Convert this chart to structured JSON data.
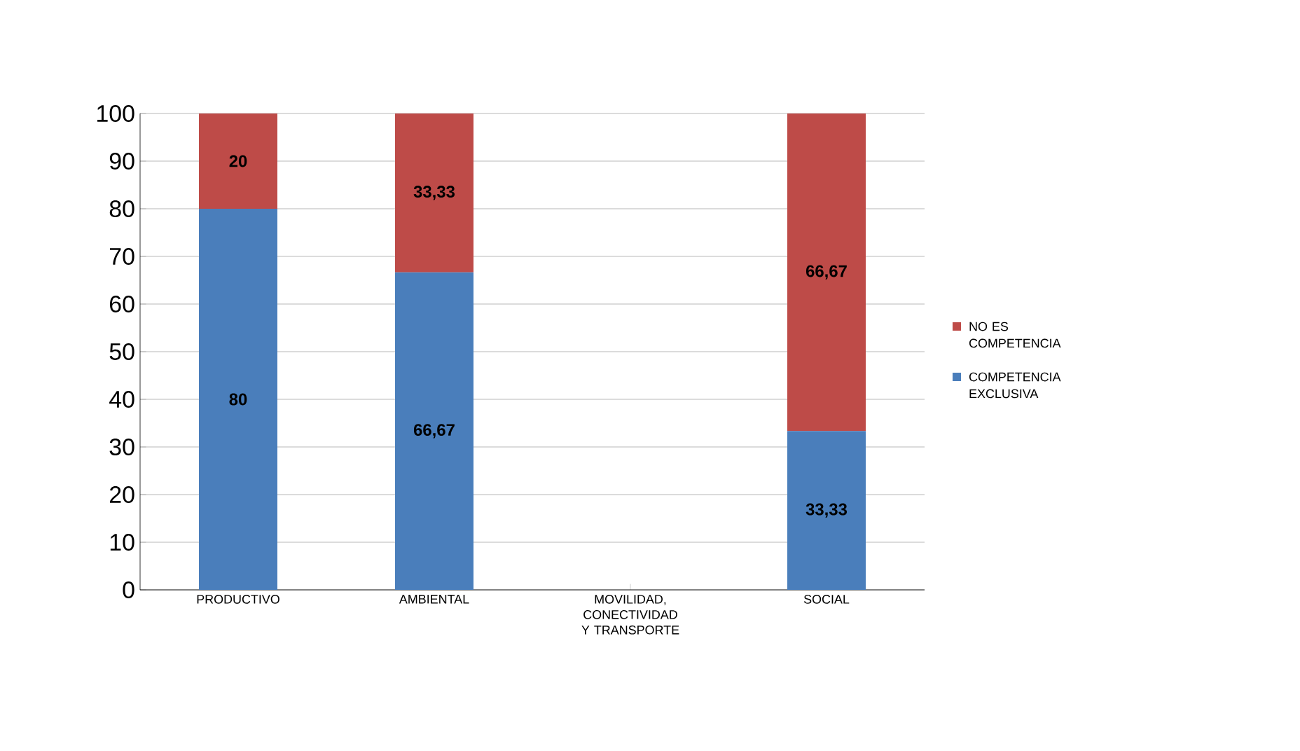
{
  "chart_data": {
    "type": "bar",
    "stacked": true,
    "categories": [
      "PRODUCTIVO",
      "AMBIENTAL",
      "MOVILIDAD, CONECTIVIDAD Y TRANSPORTE",
      "SOCIAL"
    ],
    "series": [
      {
        "name": "COMPETENCIA EXCLUSIVA",
        "color": "#4a7ebb",
        "values": [
          80,
          66.67,
          null,
          33.33
        ],
        "value_labels": [
          "80",
          "66,67",
          null,
          "33,33"
        ]
      },
      {
        "name": "NO ES COMPETENCIA",
        "color": "#be4b48",
        "values": [
          20,
          33.33,
          null,
          66.67
        ],
        "value_labels": [
          "20",
          "33,33",
          null,
          "66,67"
        ]
      }
    ],
    "ylim": [
      0,
      100
    ],
    "yticks": [
      0,
      10,
      20,
      30,
      40,
      50,
      60,
      70,
      80,
      90,
      100
    ],
    "grid": "y",
    "legend": "right"
  }
}
